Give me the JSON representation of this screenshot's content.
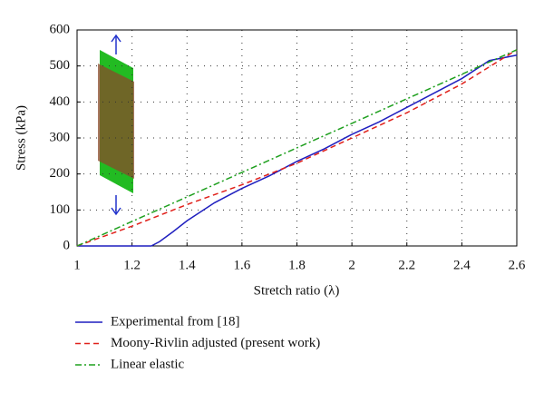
{
  "chart_data": {
    "type": "line",
    "xlabel": "Stretch ratio (λ)",
    "ylabel": "Stress (kPa)",
    "xlim": [
      1,
      2.6
    ],
    "xticks": [
      1,
      1.2,
      1.4,
      1.6,
      1.8,
      2,
      2.2,
      2.4,
      2.6
    ],
    "ylim": [
      0,
      600
    ],
    "yticks": [
      0,
      100,
      200,
      300,
      400,
      500,
      600
    ],
    "grid": true,
    "series": [
      {
        "name": "Experimental from [18]",
        "color": "#1f1fbf",
        "dash": "solid",
        "x": [
          1,
          1.27,
          1.3,
          1.35,
          1.4,
          1.5,
          1.6,
          1.7,
          1.8,
          1.9,
          2.0,
          2.1,
          2.2,
          2.3,
          2.4,
          2.5,
          2.6
        ],
        "values": [
          0,
          0,
          12,
          40,
          70,
          120,
          160,
          195,
          235,
          270,
          310,
          345,
          385,
          425,
          465,
          515,
          530
        ]
      },
      {
        "name": "Moony-Rivlin adjusted (present work)",
        "color": "#e0201a",
        "dash": "dashed",
        "x": [
          1,
          1.2,
          1.4,
          1.6,
          1.8,
          2.0,
          2.2,
          2.4,
          2.6
        ],
        "values": [
          0,
          55,
          115,
          170,
          230,
          300,
          370,
          450,
          545
        ]
      },
      {
        "name": "Linear elastic",
        "color": "#1fa01f",
        "dash": "dashdot",
        "x": [
          1,
          2.6
        ],
        "values": [
          0,
          545
        ]
      }
    ]
  }
}
